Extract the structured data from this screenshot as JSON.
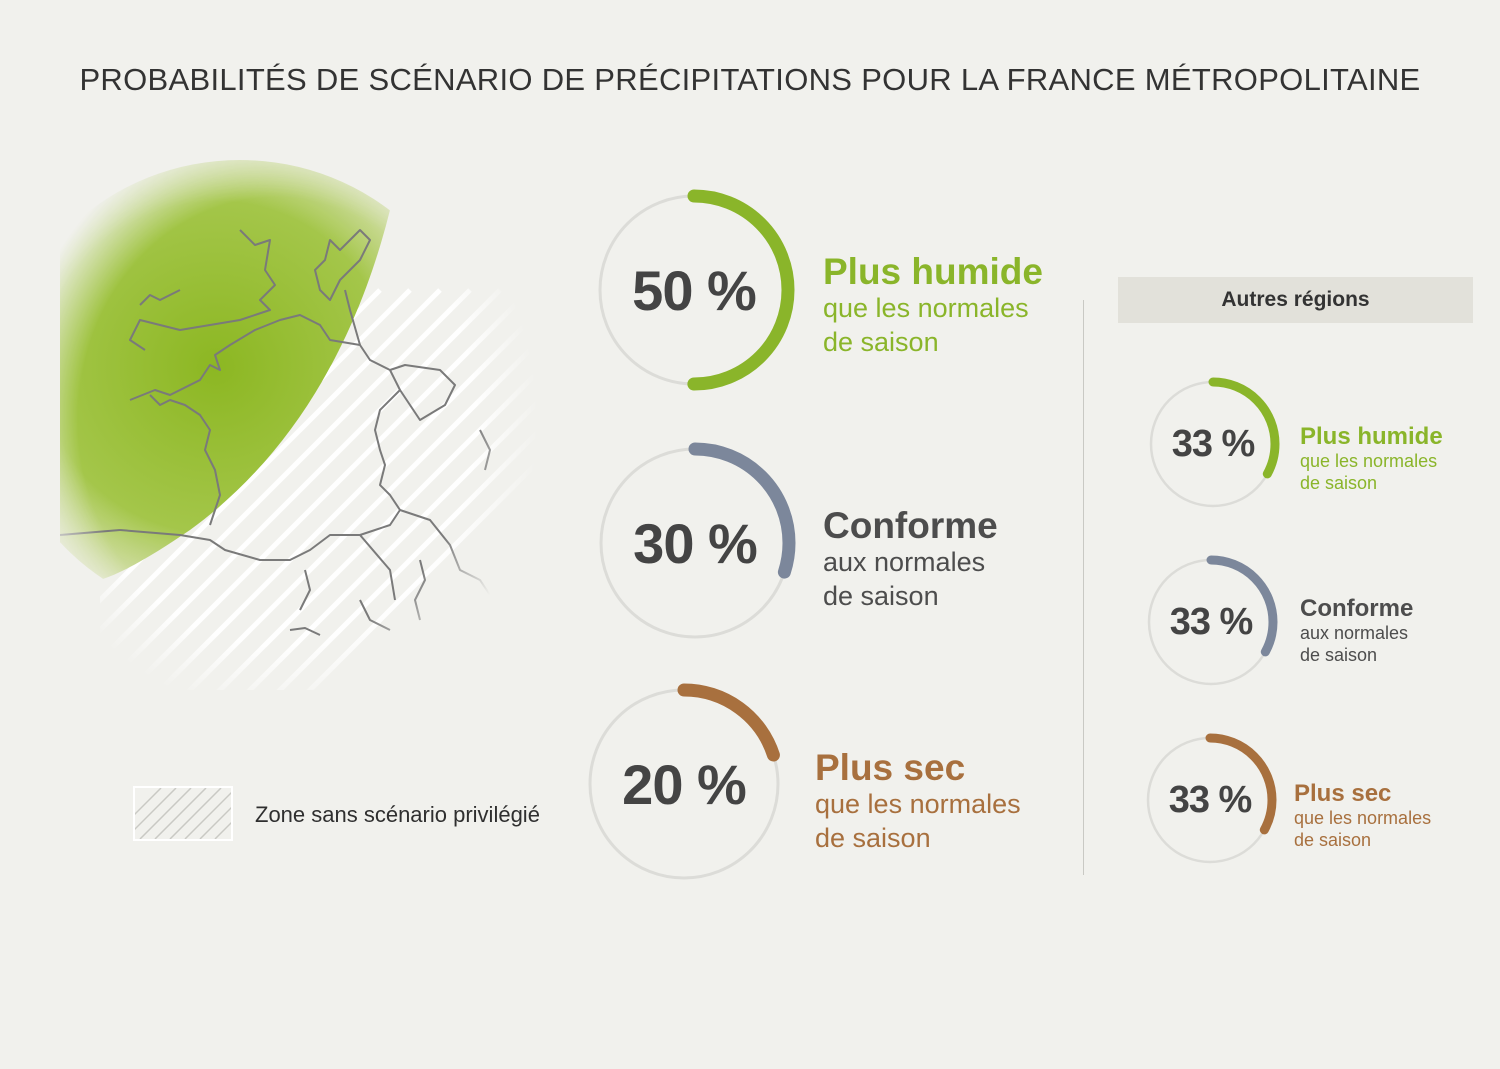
{
  "title": "PROBABILITÉS DE SCÉNARIO DE PRÉCIPITATIONS POUR LA FRANCE MÉTROPOLITAINE",
  "legend": {
    "label": "Zone sans scénario privilégié"
  },
  "other_regions_label": "Autres régions",
  "colors": {
    "background": "#f1f1ed",
    "wet": "#8ab52a",
    "normal": "#7c879b",
    "dry": "#a8703e",
    "ring_track": "#dcdcd8",
    "text": "#444444"
  },
  "chart_data": [
    {
      "type": "radial-progress",
      "region": "France métropolitaine",
      "items": [
        {
          "key": "wet",
          "pct_label": "50 %",
          "value": 50,
          "main": "Plus humide",
          "sub1": "que les normales",
          "sub2": "de saison"
        },
        {
          "key": "normal",
          "pct_label": "30 %",
          "value": 30,
          "main": "Conforme",
          "sub1": "aux normales",
          "sub2": "de saison"
        },
        {
          "key": "dry",
          "pct_label": "20 %",
          "value": 20,
          "main": "Plus sec",
          "sub1": "que les normales",
          "sub2": "de saison"
        }
      ]
    },
    {
      "type": "radial-progress",
      "region": "Autres régions",
      "items": [
        {
          "key": "wet",
          "pct_label": "33 %",
          "value": 33,
          "main": "Plus humide",
          "sub1": "que les normales",
          "sub2": "de saison"
        },
        {
          "key": "normal",
          "pct_label": "33 %",
          "value": 33,
          "main": "Conforme",
          "sub1": "aux normales",
          "sub2": "de saison"
        },
        {
          "key": "dry",
          "pct_label": "33 %",
          "value": 33,
          "main": "Plus sec",
          "sub1": "que les normales",
          "sub2": "de saison"
        }
      ]
    }
  ]
}
